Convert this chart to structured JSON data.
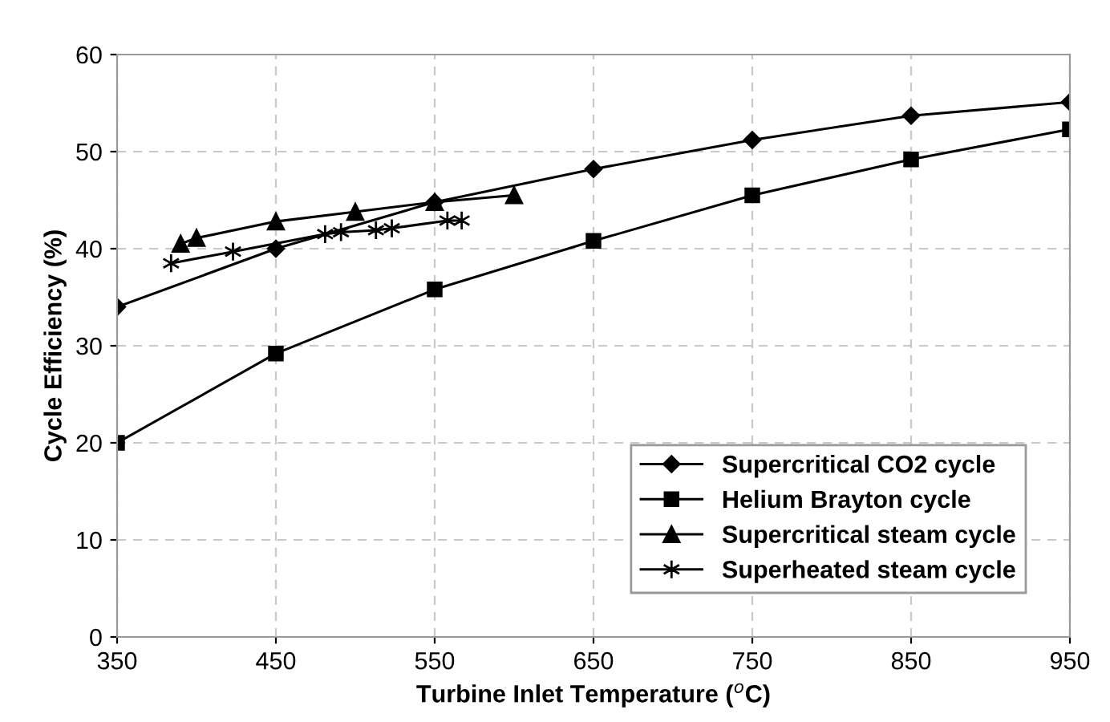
{
  "chart_data": {
    "type": "line",
    "xlabel": "Turbine Inlet Temperature ($^{o}$C)",
    "ylabel": "Cycle Efficiency (%)",
    "xlim": [
      350,
      950
    ],
    "xticks": [
      350,
      450,
      550,
      650,
      750,
      850,
      950
    ],
    "ylim": [
      0,
      60
    ],
    "yticks": [
      0,
      10,
      20,
      30,
      40,
      50,
      60
    ],
    "grid": true,
    "legend": "bottom right",
    "series": [
      {
        "name": "Supercritical CO2 cycle",
        "color": "#000000",
        "marker": "diamond",
        "x": [
          350,
          450,
          550,
          650,
          750,
          850,
          950
        ],
        "values": [
          34,
          40,
          44.8,
          48.2,
          51.2,
          53.7,
          55.1
        ]
      },
      {
        "name": "Helium Brayton cycle",
        "color": "#000000",
        "marker": "square",
        "x": [
          350,
          450,
          550,
          650,
          750,
          850,
          950
        ],
        "values": [
          20,
          29.2,
          35.8,
          40.8,
          45.5,
          49.2,
          52.3
        ]
      },
      {
        "name": "Supercritical steam cycle",
        "color": "#000000",
        "marker": "triangle",
        "x": [
          390,
          400,
          450,
          500,
          550,
          600
        ],
        "values": [
          40.5,
          41.1,
          42.8,
          43.8,
          44.8,
          45.5
        ]
      },
      {
        "name": "Superheated steam cycle",
        "color": "#000000",
        "marker": "cross",
        "x": [
          384,
          423,
          481,
          491,
          513,
          523,
          558,
          567
        ],
        "values": [
          38.5,
          39.7,
          41.5,
          41.7,
          41.9,
          42.1,
          42.9,
          42.9
        ]
      }
    ]
  }
}
